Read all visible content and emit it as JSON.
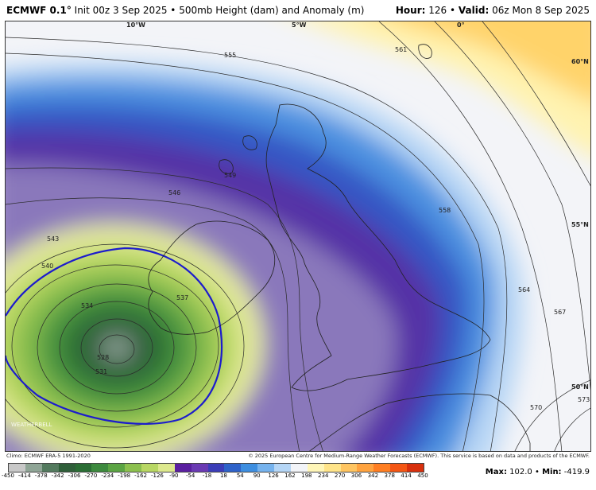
{
  "header": {
    "model": "ECMWF 0.1°",
    "init": "Init 00z 3 Sep 2025",
    "separator": "•",
    "product": "500mb Height (dam) and Anomaly (m)",
    "hour_label": "Hour:",
    "hour_value": "126",
    "valid_label": "Valid:",
    "valid_value": "06z Mon 8 Sep 2025"
  },
  "map": {
    "lon_labels": [
      "10°W",
      "5°W",
      "0°"
    ],
    "lat_labels": [
      "60°N",
      "55°N",
      "50°N"
    ],
    "contour_labels": [
      "555",
      "561",
      "549",
      "546",
      "543",
      "540",
      "534",
      "528",
      "531",
      "537",
      "558",
      "564",
      "567",
      "570",
      "573"
    ],
    "anomaly_centre": "low",
    "zero_line_color": "#1c1ccc"
  },
  "logo_text": "WEATHERBELL",
  "credits": {
    "climo": "Climo: ECMWF ERA-5 1991-2020",
    "copyright": "© 2025 European Centre for Medium-Range Weather Forecasts (ECMWF). This service is based on data and products of the ECMWF."
  },
  "colorbar": {
    "ticks": [
      "-450",
      "-414",
      "-378",
      "-342",
      "-306",
      "-270",
      "-234",
      "-198",
      "-162",
      "-126",
      "-90",
      "-54",
      "-18",
      "18",
      "54",
      "90",
      "126",
      "162",
      "198",
      "234",
      "270",
      "306",
      "342",
      "378",
      "414",
      "450"
    ],
    "colors": [
      "#c8c8c8",
      "#8fa596",
      "#537a5e",
      "#2f5f3a",
      "#2b6e35",
      "#3d8a3e",
      "#5ba443",
      "#8cc04e",
      "#b8d763",
      "#dde98d",
      "#5a1fa0",
      "#6a3ab3",
      "#3b3db8",
      "#2e62c9",
      "#3d8ee0",
      "#76b3ee",
      "#b5d6f6",
      "#f2f4f8",
      "#fff6b8",
      "#ffe489",
      "#ffc561",
      "#ffa33f",
      "#ff7e22",
      "#f45614",
      "#d8300d"
    ]
  },
  "stats": {
    "max_label": "Max:",
    "max_value": "102.0",
    "sep": "•",
    "min_label": "Min:",
    "min_value": "-419.9"
  }
}
